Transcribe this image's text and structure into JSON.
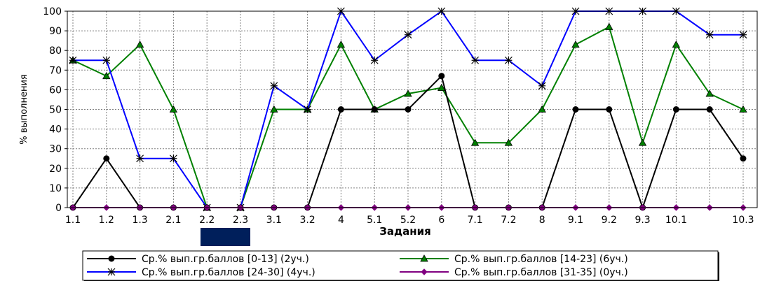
{
  "chart_data": {
    "type": "line",
    "title": "",
    "xlabel": "Задания",
    "ylabel": "% выполнения",
    "ylim": [
      0,
      100
    ],
    "yticks": [
      0,
      10,
      20,
      30,
      40,
      50,
      60,
      70,
      80,
      90,
      100
    ],
    "grid": true,
    "legend_position": "bottom",
    "categories": [
      "1.1",
      "1.2",
      "1.3",
      "2.1",
      "2.2",
      "2.3",
      "3.1",
      "3.2",
      "4",
      "5.1",
      "5.2",
      "6",
      "7.1",
      "7.2",
      "8",
      "9.1",
      "9.2",
      "9.3",
      "10.1",
      "",
      "10.3"
    ],
    "series": [
      {
        "name": "Ср.% вып.гр.баллов [0-13] (2уч.)",
        "color": "#000000",
        "marker": "circle",
        "values": [
          0,
          25,
          0,
          0,
          0,
          0,
          0,
          0,
          50,
          50,
          50,
          67,
          0,
          0,
          0,
          50,
          50,
          0,
          50,
          50,
          25
        ]
      },
      {
        "name": "Ср.% вып.гр.баллов [14-23] (6уч.)",
        "color": "#008000",
        "marker": "triangle",
        "values": [
          75,
          67,
          83,
          50,
          0,
          0,
          50,
          50,
          83,
          50,
          58,
          61,
          33,
          33,
          50,
          83,
          92,
          33,
          83,
          58,
          50
        ]
      },
      {
        "name": "Ср.% вып.гр.баллов [24-30] (4уч.)",
        "color": "#0000ff",
        "marker": "star",
        "values": [
          75,
          75,
          25,
          25,
          0,
          0,
          62,
          50,
          100,
          75,
          88,
          100,
          75,
          75,
          62,
          100,
          100,
          100,
          100,
          88,
          88
        ]
      },
      {
        "name": "Ср.% вып.гр.баллов [31-35] (0уч.)",
        "color": "#800080",
        "marker": "diamond",
        "values": [
          0,
          0,
          0,
          0,
          0,
          0,
          0,
          0,
          0,
          0,
          0,
          0,
          0,
          0,
          0,
          0,
          0,
          0,
          0,
          0,
          0
        ]
      }
    ]
  },
  "colors": {
    "highlight_block": "#001f5b",
    "grid": "#808080"
  }
}
